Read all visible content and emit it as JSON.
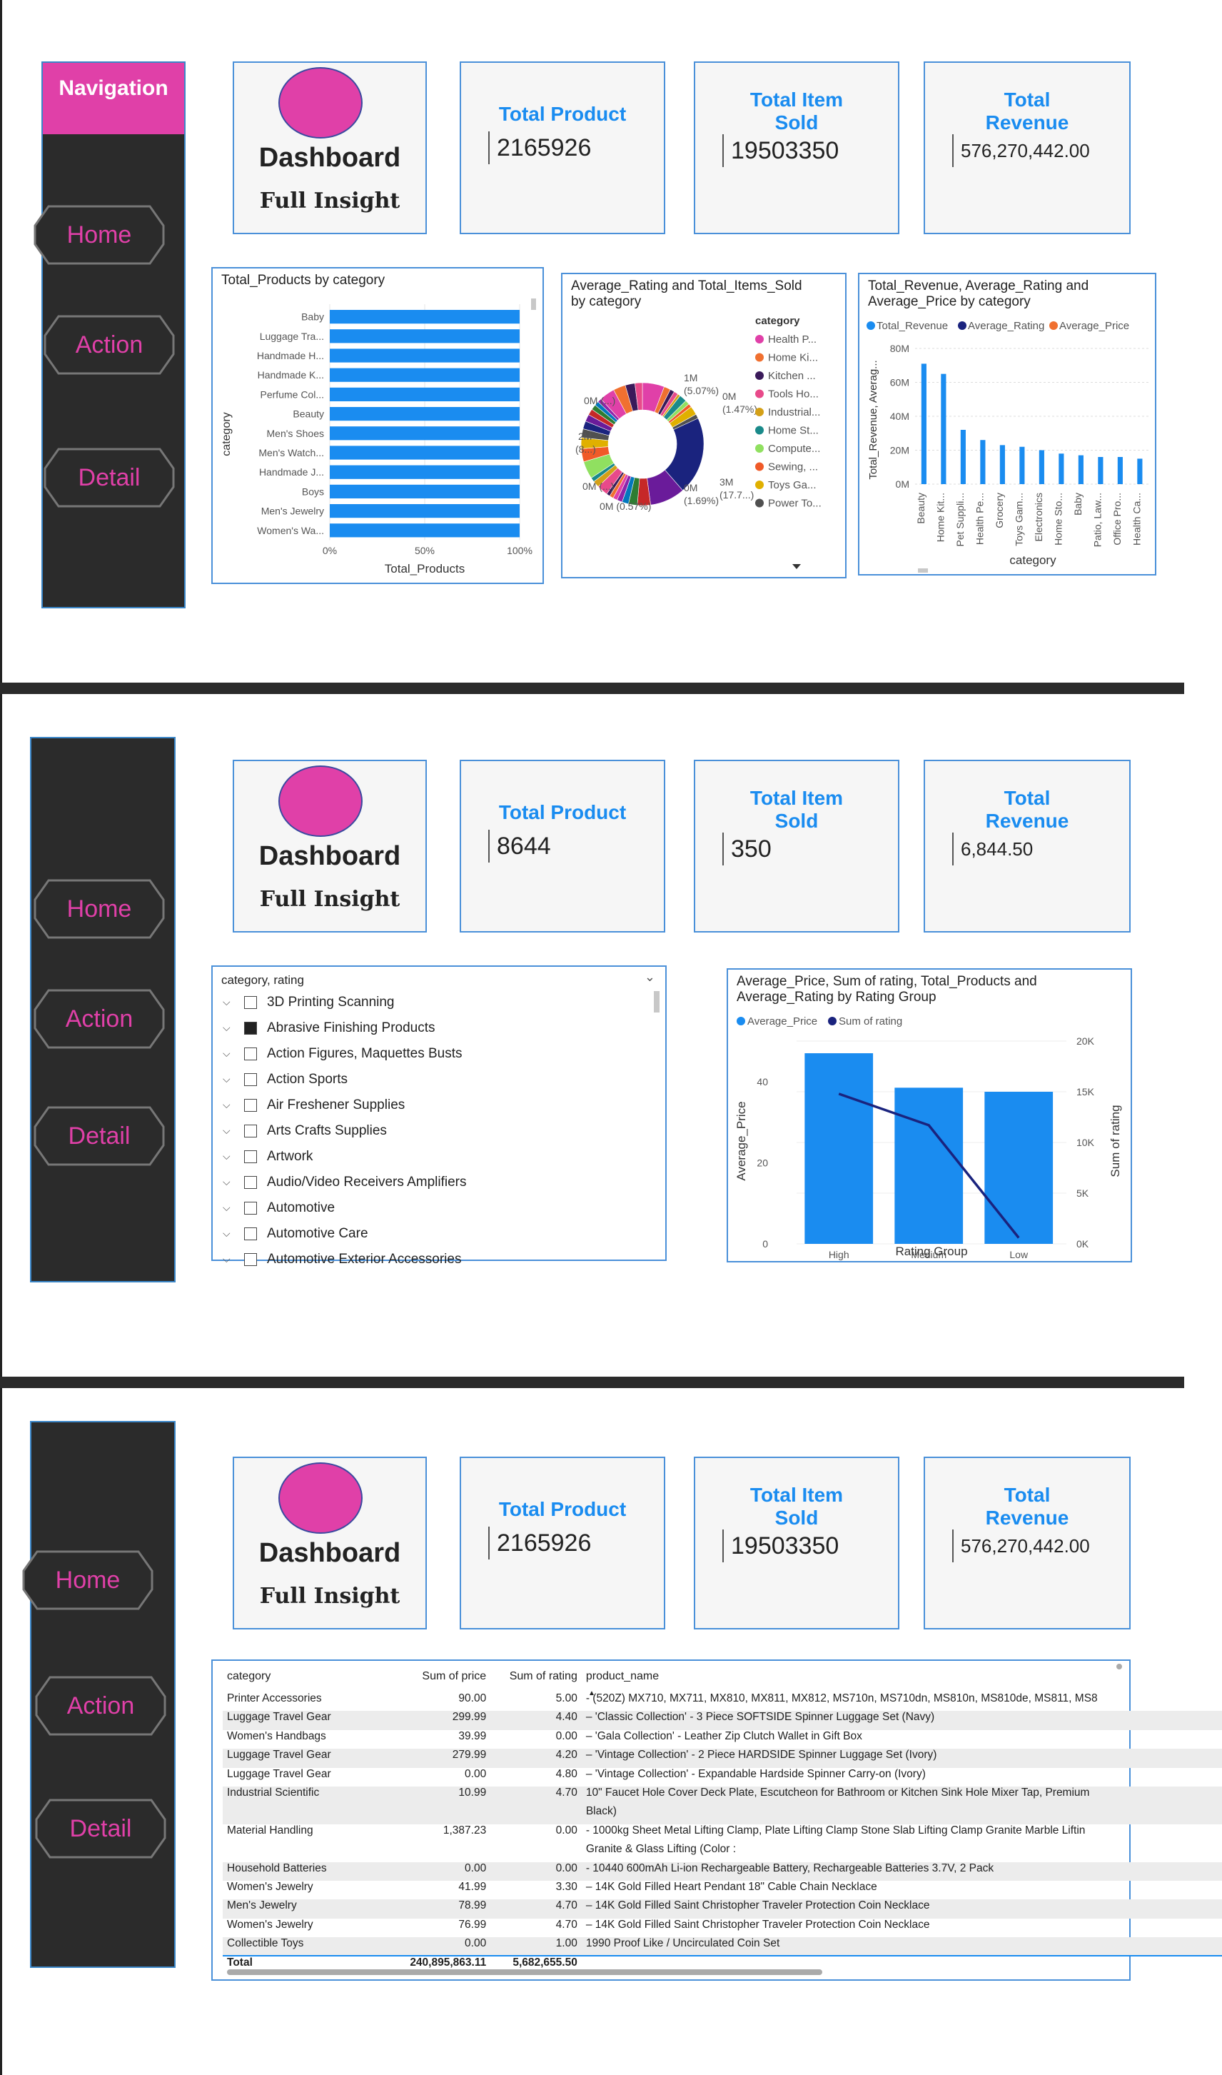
{
  "navigation": {
    "title": "Navigation",
    "home": "Home",
    "action": "Action",
    "detail": "Detail"
  },
  "colors": {
    "accent_pink": "#e040a8",
    "kpi_blue": "#1a8cf0",
    "bar_blue": "#1a8cf0",
    "nav_bg": "#2b2b2b"
  },
  "dashboard": {
    "title": "Dashboard",
    "subtitle": "Full Insight"
  },
  "kpi_labels": {
    "total_product": "Total Product",
    "total_item_sold_1": "Total Item",
    "total_item_sold_2": "Sold",
    "total_revenue_1": "Total",
    "total_revenue_2": "Revenue"
  },
  "page1": {
    "total_product": "2165926",
    "total_item_sold": "19503350",
    "total_revenue": "576,270,442.00"
  },
  "page2": {
    "total_product": "8644",
    "total_item_sold": "350",
    "total_revenue": "6,844.50"
  },
  "page3": {
    "total_product": "2165926",
    "total_item_sold": "19503350",
    "total_revenue": "576,270,442.00"
  },
  "chart_data": [
    {
      "type": "bar",
      "orientation": "horizontal",
      "title": "Total_Products by category",
      "xlabel": "Total_Products",
      "ylabel": "category",
      "categories": [
        "Baby",
        "Luggage Tra...",
        "Handmade H...",
        "Handmade K...",
        "Perfume Col...",
        "Beauty",
        "Men's Shoes",
        "Men's Watch...",
        "Handmade J...",
        "Boys",
        "Men's Jewelry",
        "Women's Wa..."
      ],
      "values": [
        100,
        100,
        100,
        100,
        100,
        100,
        100,
        100,
        100,
        100,
        100,
        100
      ],
      "xticks": [
        "0%",
        "50%",
        "100%"
      ],
      "xlim": [
        0,
        100
      ]
    },
    {
      "type": "pie",
      "title_1": "Average_Rating and Total_Items_Sold",
      "title_2": "by category",
      "legend_title": "category",
      "legend": [
        "Health P...",
        "Home Ki...",
        "Kitchen ...",
        "Tools Ho...",
        "Industrial...",
        "Home St...",
        "Compute...",
        "Sewing, ...",
        "Toys Ga...",
        "Power To..."
      ],
      "legend_colors": [
        "#e040a8",
        "#f07030",
        "#3a1a5a",
        "#e84a8a",
        "#d4a017",
        "#1a8a8a",
        "#90e060",
        "#f05a28",
        "#e0b000",
        "#505050"
      ],
      "labels": [
        "1M",
        "(5.07%)",
        "0M",
        "(1.47%)",
        "0M (...)",
        "2M",
        "(8...)",
        "0M (...)",
        "0M (0.57%)",
        "0M",
        "(1.69%)",
        "3M",
        "(17.7...)"
      ]
    },
    {
      "type": "bar",
      "title_1": "Total_Revenue, Average_Rating and",
      "title_2": "Average_Price by category",
      "series_names": [
        "Total_Revenue",
        "Average_Rating",
        "Average_Price"
      ],
      "series_colors": [
        "#1a8cf0",
        "#1a237e",
        "#f07030"
      ],
      "ylabel": "Total_Revenue, Averag...",
      "xlabel": "category",
      "yticks": [
        "0M",
        "20M",
        "40M",
        "60M",
        "80M"
      ],
      "ylim": [
        0,
        80
      ],
      "categories": [
        "Beauty",
        "Home Kit...",
        "Pet Suppli...",
        "Health Pe...",
        "Grocery",
        "Toys Gam...",
        "Electronics",
        "Home Sto...",
        "Baby",
        "Patio, Law...",
        "Office Pro...",
        "Health Ca..."
      ],
      "values": [
        71,
        65,
        32,
        26,
        23,
        22,
        20,
        18,
        17,
        16,
        16,
        15
      ]
    },
    {
      "type": "bar",
      "title_1": "Average_Price, Sum of rating, Total_Products and",
      "title_2": "Average_Rating by Rating Group",
      "series": [
        {
          "name": "Average_Price",
          "values": [
            47,
            38.5,
            37.5
          ]
        },
        {
          "name": "Sum of rating",
          "values": [
            14800,
            11700,
            600
          ]
        }
      ],
      "series_colors": [
        "#1a8cf0",
        "#1a237e"
      ],
      "categories": [
        "High",
        "Medium",
        "Low"
      ],
      "xlabel": "Rating Group",
      "ylabel": "Average_Price",
      "y2label": "Sum of rating",
      "yticks": [
        "0",
        "20",
        "40"
      ],
      "ylim": [
        0,
        50
      ],
      "y2ticks": [
        "0K",
        "5K",
        "10K",
        "15K",
        "20K"
      ],
      "y2lim": [
        0,
        20000
      ]
    }
  ],
  "slicer": {
    "title": "category, rating",
    "items": [
      {
        "label": "3D Printing Scanning",
        "checked": false
      },
      {
        "label": "Abrasive Finishing Products",
        "checked": true
      },
      {
        "label": "Action Figures, Maquettes Busts",
        "checked": false
      },
      {
        "label": "Action Sports",
        "checked": false
      },
      {
        "label": "Air Freshener Supplies",
        "checked": false
      },
      {
        "label": "Arts Crafts Supplies",
        "checked": false
      },
      {
        "label": "Artwork",
        "checked": false
      },
      {
        "label": "Audio/Video Receivers Amplifiers",
        "checked": false
      },
      {
        "label": "Automotive",
        "checked": false
      },
      {
        "label": "Automotive Care",
        "checked": false
      },
      {
        "label": "Automotive Exterior Accessories",
        "checked": false
      }
    ]
  },
  "table": {
    "headers": [
      "category",
      "Sum of price",
      "Sum of rating",
      "product_name"
    ],
    "rows": [
      [
        "Printer Accessories",
        "90.00",
        "5.00",
        "- (520Z) MX710, MX711, MX810, MX811, MX812, MS710n, MS710dn, MS810n, MS810de, MS811, MS8"
      ],
      [
        "Luggage Travel Gear",
        "299.99",
        "4.40",
        "– 'Classic Collection' - 3 Piece SOFTSIDE Spinner Luggage Set (Navy)"
      ],
      [
        "Women's Handbags",
        "39.99",
        "0.00",
        "– 'Gala Collection' - Leather Zip Clutch Wallet in Gift Box"
      ],
      [
        "Luggage Travel Gear",
        "279.99",
        "4.20",
        "– 'Vintage Collection' - 2 Piece HARDSIDE Spinner Luggage Set (Ivory)"
      ],
      [
        "Luggage Travel Gear",
        "0.00",
        "4.80",
        "– 'Vintage Collection' - Expandable Hardside Spinner Carry-on (Ivory)"
      ],
      [
        "Industrial Scientific",
        "10.99",
        "4.70",
        "10\" Faucet Hole Cover Deck Plate, Escutcheon for Bathroom or Kitchen Sink Hole Mixer Tap, Premium"
      ],
      [
        "",
        "",
        "",
        "Black)"
      ],
      [
        "Material Handling",
        "1,387.23",
        "0.00",
        "- 1000kg Sheet Metal Lifting Clamp, Plate Lifting Clamp Stone Slab Lifting Clamp Granite Marble Liftin"
      ],
      [
        "",
        "",
        "",
        "Granite & Glass Lifting (Color :"
      ],
      [
        "Household Batteries",
        "0.00",
        "0.00",
        "- 10440 600mAh Li-ion Rechargeable Battery, Rechargeable Batteries 3.7V, 2 Pack"
      ],
      [
        "Women's Jewelry",
        "41.99",
        "3.30",
        "– 14K Gold Filled Heart Pendant 18\" Cable Chain Necklace"
      ],
      [
        "Men's Jewelry",
        "78.99",
        "4.70",
        "– 14K Gold Filled Saint Christopher Traveler Protection Coin Necklace"
      ],
      [
        "Women's Jewelry",
        "76.99",
        "4.70",
        "– 14K Gold Filled Saint Christopher Traveler Protection Coin Necklace"
      ],
      [
        "Collectible Toys",
        "0.00",
        "1.00",
        "1990 Proof Like / Uncirculated Coin Set"
      ]
    ],
    "total": [
      "Total",
      "240,895,863.11",
      "5,682,655.50",
      ""
    ]
  }
}
